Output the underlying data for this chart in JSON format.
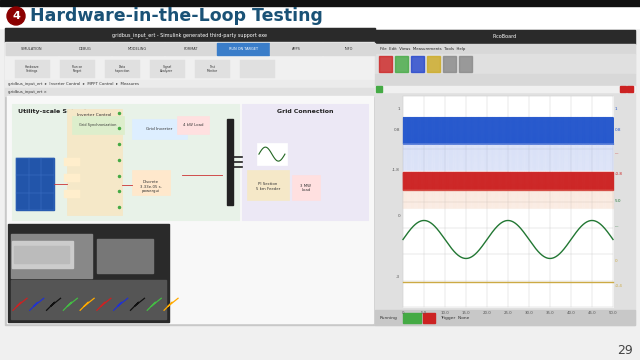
{
  "title": "Hardware-in-the-Loop Testing",
  "title_number": "4",
  "title_color": "#1a5276",
  "slide_bg": "#f0f0f0",
  "number_bg": "#8b0000",
  "number_color": "#ffffff",
  "page_number": "29",
  "scope_blue": "#2255cc",
  "scope_red": "#cc2222",
  "scope_green": "#227733",
  "scope_yellow": "#ccaa44",
  "sim_win_bg": "#c8c8c8",
  "sim_title_bar": "#2a2a2a",
  "sim_ribbon_bg": "#f0f0f0",
  "sim_content_bg": "#f8f8f8",
  "solar_box_bg": "#e8f2e8",
  "solar_box_edge": "#88bb88",
  "grid_box_bg": "#ece8f5",
  "grid_box_edge": "#9988bb",
  "inv_block_bg": "#f5e8c8",
  "scope_win_bg": "#e0e0e0",
  "scope_win_title": "#d0d0d0",
  "scope_plot_bg": "#ffffff",
  "scope_grid_color": "#cccccc"
}
